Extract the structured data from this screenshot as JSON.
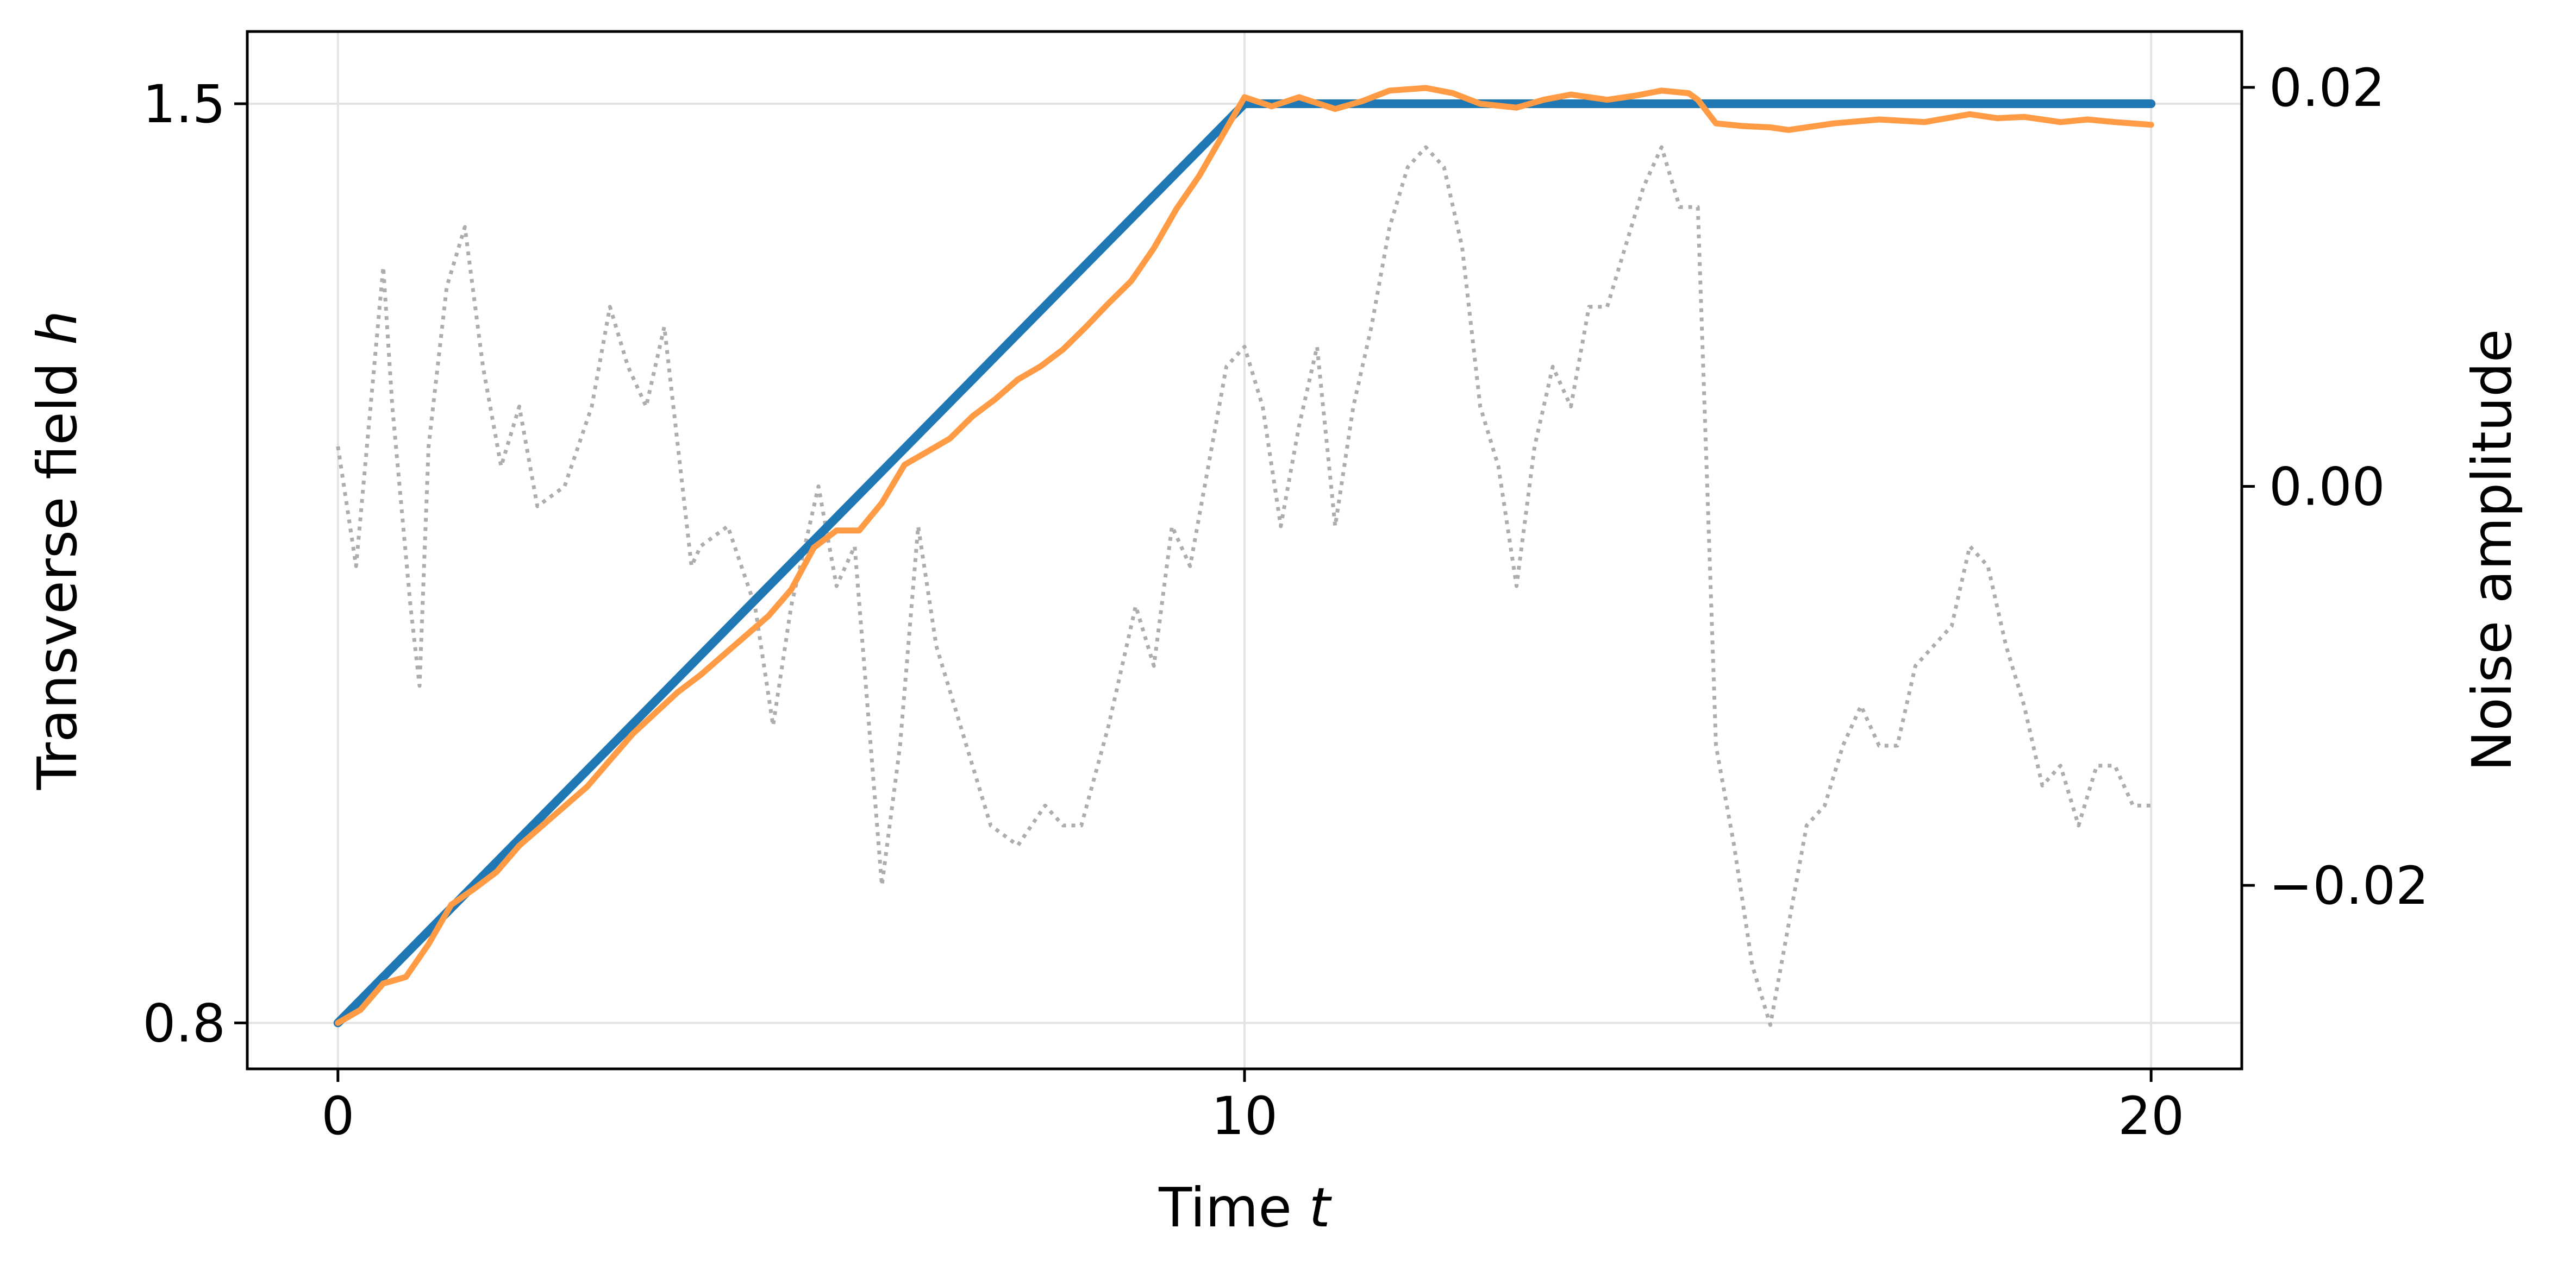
{
  "chart_data": {
    "type": "line",
    "xlabel": "Time",
    "xlabel_var": "t",
    "ylabel_left": "Transverse field",
    "ylabel_left_var": "h",
    "ylabel_right": "Noise amplitude",
    "xlim": [
      -1,
      21
    ],
    "ylim_left": [
      0.765,
      1.555
    ],
    "ylim_right": [
      -0.0292,
      0.0228
    ],
    "x_ticks": [
      {
        "value": 0,
        "label": "0"
      },
      {
        "value": 10,
        "label": "10"
      },
      {
        "value": 20,
        "label": "20"
      }
    ],
    "y_left_ticks": [
      {
        "value": 0.8,
        "label": "0.8"
      },
      {
        "value": 1.5,
        "label": "1.5"
      }
    ],
    "y_right_ticks": [
      {
        "value": 0.02,
        "label": "0.02"
      },
      {
        "value": 0.0,
        "label": "0.00"
      },
      {
        "value": -0.02,
        "label": "−0.02"
      }
    ],
    "grid": true,
    "legend": "none",
    "series": [
      {
        "axis": "right",
        "style": "dotted",
        "color": "#adadad",
        "x": [
          0,
          0.2,
          0.4,
          0.5,
          0.6,
          0.8,
          0.9,
          1.0,
          1.2,
          1.4,
          1.6,
          1.8,
          2.0,
          2.2,
          2.5,
          2.8,
          3.0,
          3.2,
          3.4,
          3.6,
          3.8,
          3.9,
          4.0,
          4.3,
          4.6,
          4.8,
          5.0,
          5.3,
          5.5,
          5.7,
          6.0,
          6.2,
          6.4,
          6.6,
          6.8,
          7.0,
          7.2,
          7.5,
          7.8,
          8.0,
          8.2,
          8.5,
          8.8,
          9.0,
          9.2,
          9.4,
          9.6,
          9.8,
          10.0,
          10.2,
          10.4,
          10.6,
          10.8,
          11.0,
          11.2,
          11.4,
          11.6,
          11.8,
          12.0,
          12.2,
          12.4,
          12.6,
          12.8,
          13.0,
          13.2,
          13.4,
          13.6,
          13.8,
          14.0,
          14.2,
          14.4,
          14.6,
          14.8,
          15.0,
          15.2,
          15.4,
          15.6,
          15.8,
          16.0,
          16.2,
          16.4,
          16.6,
          16.8,
          17.0,
          17.2,
          17.4,
          17.6,
          17.8,
          18.0,
          18.2,
          18.4,
          18.6,
          18.8,
          19.0,
          19.2,
          19.4,
          19.6,
          19.8,
          20.0
        ],
        "values": [
          0.002,
          -0.004,
          0.006,
          0.011,
          0.004,
          -0.006,
          -0.01,
          0.002,
          0.01,
          0.013,
          0.006,
          0.001,
          0.004,
          -0.001,
          0.0,
          0.004,
          0.009,
          0.006,
          0.004,
          0.008,
          0.0,
          -0.004,
          -0.003,
          -0.002,
          -0.006,
          -0.012,
          -0.006,
          0.0,
          -0.005,
          -0.003,
          -0.02,
          -0.013,
          -0.002,
          -0.008,
          -0.011,
          -0.014,
          -0.017,
          -0.018,
          -0.016,
          -0.017,
          -0.017,
          -0.012,
          -0.006,
          -0.009,
          -0.002,
          -0.004,
          0.001,
          0.006,
          0.007,
          0.004,
          -0.002,
          0.003,
          0.007,
          -0.002,
          0.004,
          0.008,
          0.013,
          0.016,
          0.017,
          0.016,
          0.012,
          0.004,
          0.001,
          -0.005,
          0.002,
          0.006,
          0.004,
          0.009,
          0.009,
          0.012,
          0.015,
          0.017,
          0.014,
          0.014,
          -0.013,
          -0.018,
          -0.024,
          -0.027,
          -0.022,
          -0.017,
          -0.016,
          -0.013,
          -0.011,
          -0.013,
          -0.013,
          -0.009,
          -0.008,
          -0.007,
          -0.003,
          -0.004,
          -0.008,
          -0.011,
          -0.015,
          -0.014,
          -0.017,
          -0.014,
          -0.014,
          -0.016,
          -0.016
        ]
      },
      {
        "axis": "left",
        "style": "solid",
        "color": "#1f77b4",
        "x": [
          0,
          10,
          20
        ],
        "values": [
          0.8,
          1.5,
          1.5
        ]
      },
      {
        "axis": "left",
        "style": "solid",
        "color": "#ff9a45",
        "x": [
          0,
          0.25,
          0.5,
          0.75,
          1.0,
          1.25,
          1.5,
          1.75,
          2.0,
          2.25,
          2.5,
          2.75,
          3.0,
          3.25,
          3.5,
          3.75,
          4.0,
          4.25,
          4.5,
          4.75,
          5.0,
          5.25,
          5.5,
          5.75,
          6.0,
          6.25,
          6.5,
          6.75,
          7.0,
          7.25,
          7.5,
          7.75,
          8.0,
          8.25,
          8.5,
          8.75,
          9.0,
          9.25,
          9.5,
          9.75,
          10.0,
          10.3,
          10.6,
          11.0,
          11.3,
          11.6,
          12.0,
          12.3,
          12.6,
          13.0,
          13.3,
          13.6,
          14.0,
          14.3,
          14.6,
          14.9,
          15.0,
          15.2,
          15.5,
          15.8,
          16.0,
          16.5,
          17.0,
          17.5,
          18.0,
          18.3,
          18.6,
          19.0,
          19.3,
          19.6,
          20.0
        ],
        "values": [
          0.8,
          0.81,
          0.83,
          0.835,
          0.86,
          0.89,
          0.902,
          0.915,
          0.935,
          0.95,
          0.965,
          0.98,
          1.0,
          1.02,
          1.036,
          1.052,
          1.065,
          1.08,
          1.095,
          1.11,
          1.13,
          1.162,
          1.175,
          1.175,
          1.196,
          1.225,
          1.235,
          1.245,
          1.262,
          1.275,
          1.29,
          1.3,
          1.313,
          1.33,
          1.348,
          1.365,
          1.39,
          1.42,
          1.445,
          1.475,
          1.505,
          1.498,
          1.505,
          1.496,
          1.502,
          1.51,
          1.512,
          1.508,
          1.5,
          1.497,
          1.503,
          1.507,
          1.503,
          1.506,
          1.51,
          1.508,
          1.503,
          1.485,
          1.483,
          1.482,
          1.48,
          1.485,
          1.488,
          1.486,
          1.492,
          1.489,
          1.49,
          1.486,
          1.488,
          1.486,
          1.484
        ]
      }
    ]
  }
}
